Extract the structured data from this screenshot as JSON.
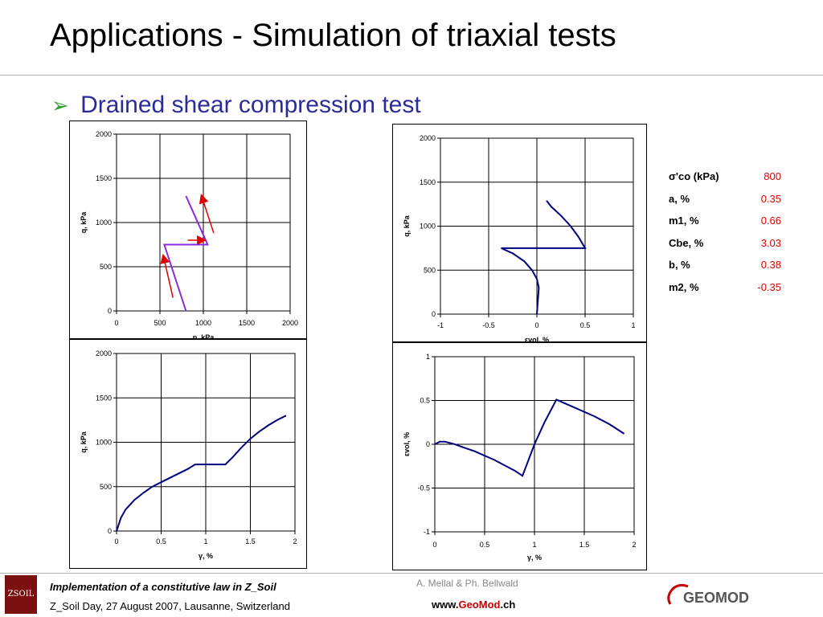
{
  "slide": {
    "title": "Applications - Simulation of triaxial tests",
    "bullet": "Drained shear compression test",
    "bullet_marker": "➢"
  },
  "parameters": [
    {
      "name": "σ'co (kPa)",
      "value": "800"
    },
    {
      "name": "a, %",
      "value": "0.35"
    },
    {
      "name": "m1, %",
      "value": "0.66"
    },
    {
      "name": "Cbe, %",
      "value": "3.03"
    },
    {
      "name": "b, %",
      "value": "0.38"
    },
    {
      "name": "m2, %",
      "value": "-0.35"
    }
  ],
  "footer": {
    "line1": "Implementation of a constitutive law in Z_Soil",
    "line2": "Z_Soil Day, 27 August 2007, Lausanne, Switzerland",
    "author": "A. Mellal & Ph. Bellwald",
    "url_prefix": "www.",
    "url_geo": "Geo",
    "url_mod": "Mod",
    "url_suffix": ".ch",
    "logo_left": "ZSOIL",
    "logo_right": "GEOMOD"
  },
  "colors": {
    "curve": "#000080",
    "stress_path": "#8a2be2",
    "arrows": "#e00000",
    "param_values": "#e00000",
    "bullet": "#2b2b9a"
  },
  "chart_data": [
    {
      "type": "line",
      "xlabel": "p, kPa",
      "ylabel": "q, kPa",
      "xlim": [
        0,
        2000
      ],
      "ylim": [
        0,
        2000
      ],
      "xticks": [
        0,
        500,
        1000,
        1500,
        2000
      ],
      "yticks": [
        0,
        500,
        1000,
        1500,
        2000
      ],
      "grid": true,
      "series": [
        {
          "x": [
            800,
            550,
            1050,
            800
          ],
          "y": [
            0,
            750,
            750,
            1300
          ]
        }
      ],
      "annotations": [
        {
          "type": "arrow",
          "from": [
            650,
            150
          ],
          "to": [
            540,
            620
          ]
        },
        {
          "type": "arrow",
          "from": [
            820,
            800
          ],
          "to": [
            1010,
            800
          ]
        },
        {
          "type": "arrow",
          "from": [
            1120,
            880
          ],
          "to": [
            980,
            1300
          ]
        }
      ]
    },
    {
      "type": "line",
      "xlabel": "εvol, %",
      "ylabel": "q, kPa",
      "xlim": [
        -1,
        1
      ],
      "ylim": [
        0,
        2000
      ],
      "xticks": [
        -1,
        -0.5,
        0,
        0.5,
        1
      ],
      "yticks": [
        0,
        500,
        1000,
        1500,
        2000
      ],
      "grid": true,
      "series": [
        {
          "x": [
            0,
            0.01,
            0.02,
            0.0,
            -0.05,
            -0.13,
            -0.25,
            -0.37,
            0.5,
            0.43,
            0.35,
            0.25,
            0.15,
            0.1
          ],
          "y": [
            0,
            150,
            300,
            400,
            500,
            600,
            690,
            750,
            750,
            880,
            1000,
            1120,
            1220,
            1290
          ]
        }
      ]
    },
    {
      "type": "line",
      "xlabel": "γ, %",
      "ylabel": "q, kPa",
      "xlim": [
        0,
        2
      ],
      "ylim": [
        0,
        2000
      ],
      "xticks": [
        0,
        0.5,
        1,
        1.5,
        2
      ],
      "yticks": [
        0,
        500,
        1000,
        1500,
        2000
      ],
      "grid": true,
      "series": [
        {
          "x": [
            0,
            0.05,
            0.1,
            0.2,
            0.3,
            0.4,
            0.5,
            0.6,
            0.7,
            0.8,
            0.88,
            1.0,
            1.1,
            1.22,
            1.3,
            1.4,
            1.5,
            1.6,
            1.7,
            1.8,
            1.9
          ],
          "y": [
            0,
            150,
            240,
            350,
            430,
            500,
            550,
            600,
            650,
            700,
            750,
            750,
            750,
            750,
            830,
            940,
            1040,
            1120,
            1190,
            1250,
            1300
          ]
        }
      ]
    },
    {
      "type": "line",
      "xlabel": "γ, %",
      "ylabel": "εvol, %",
      "xlim": [
        0,
        2
      ],
      "ylim": [
        -1,
        1
      ],
      "xticks": [
        0,
        0.5,
        1,
        1.5,
        2
      ],
      "yticks": [
        -1,
        -0.5,
        0,
        0.5,
        1
      ],
      "grid": true,
      "series": [
        {
          "x": [
            0,
            0.05,
            0.1,
            0.2,
            0.3,
            0.4,
            0.5,
            0.6,
            0.7,
            0.8,
            0.88,
            1.0,
            1.1,
            1.22,
            1.4,
            1.6,
            1.75,
            1.9
          ],
          "y": [
            0,
            0.03,
            0.03,
            0.0,
            -0.04,
            -0.08,
            -0.13,
            -0.18,
            -0.24,
            -0.3,
            -0.36,
            0.0,
            0.25,
            0.51,
            0.42,
            0.32,
            0.23,
            0.12
          ]
        }
      ]
    }
  ]
}
